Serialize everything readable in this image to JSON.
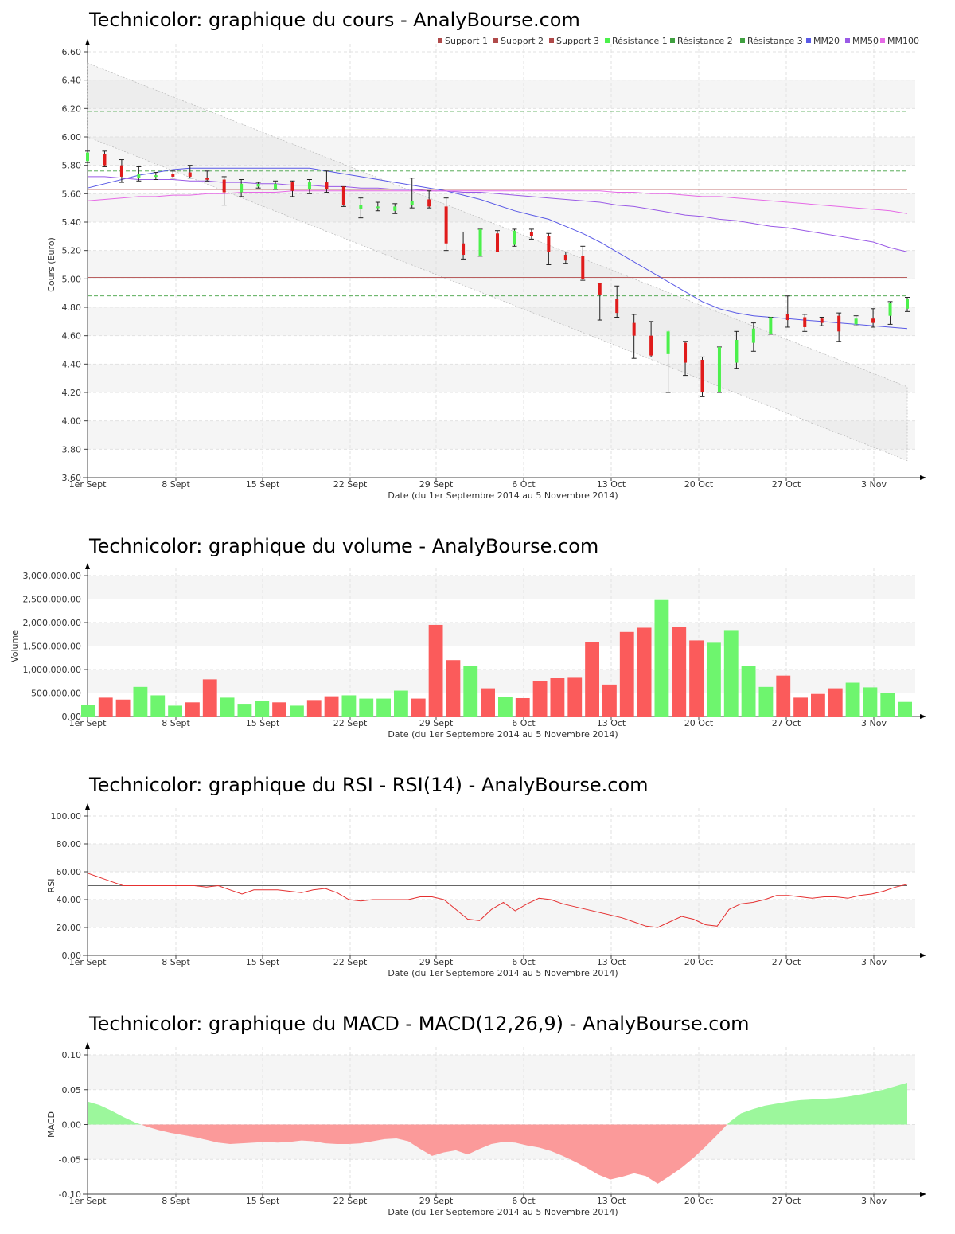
{
  "colors": {
    "up": "#4cf04c",
    "down": "#e01b1b",
    "vol_up": "#6ef56e",
    "vol_down": "#fb5b5b",
    "mm20": "#5a5ae6",
    "mm50": "#9a5ae6",
    "mm100": "#e66ae6",
    "support": "#b04a4a",
    "resistance": "#40a040",
    "rsi": "#e53030",
    "macd_pos": "#9cf79c",
    "macd_neg": "#fb9a9a",
    "band": "#efefef"
  },
  "x_ticks": [
    "1er Sept",
    "8 Sept",
    "15 Sept",
    "22 Sept",
    "29 Sept",
    "6 Oct",
    "13 Oct",
    "20 Oct",
    "27 Oct",
    "3 Nov"
  ],
  "x_label": "Date (du 1er Septembre 2014 au 5 Novembre 2014)",
  "chart_data": [
    {
      "type": "candlestick",
      "title": "Technicolor: graphique du cours - AnalyBourse.com",
      "ylabel": "Cours (Euro)",
      "ylim": [
        3.6,
        6.6
      ],
      "yticks": [
        "3.60",
        "3.80",
        "4.00",
        "4.20",
        "4.40",
        "4.60",
        "4.80",
        "5.00",
        "5.20",
        "5.40",
        "5.60",
        "5.80",
        "6.00",
        "6.20",
        "6.40",
        "6.60"
      ],
      "legend": [
        "Support 1",
        "Support 2",
        "Support 3",
        "Résistance 1",
        "Résistance 2",
        "Résistance 3",
        "MM20",
        "MM50",
        "MM100"
      ],
      "levels": {
        "support": [
          5.52,
          5.01,
          5.63
        ],
        "resistance": [
          4.88,
          5.76,
          6.18
        ]
      },
      "trend_channel": {
        "upper": [
          6.52,
          4.24
        ],
        "lower": [
          6.0,
          3.72
        ]
      },
      "candles": [
        {
          "o": 5.83,
          "h": 5.9,
          "l": 5.82,
          "c": 5.89
        },
        {
          "o": 5.88,
          "h": 5.9,
          "l": 5.79,
          "c": 5.8
        },
        {
          "o": 5.8,
          "h": 5.84,
          "l": 5.68,
          "c": 5.72
        },
        {
          "o": 5.71,
          "h": 5.79,
          "l": 5.69,
          "c": 5.74
        },
        {
          "o": 5.72,
          "h": 5.75,
          "l": 5.7,
          "c": 5.73
        },
        {
          "o": 5.74,
          "h": 5.76,
          "l": 5.71,
          "c": 5.72
        },
        {
          "o": 5.75,
          "h": 5.8,
          "l": 5.71,
          "c": 5.72
        },
        {
          "o": 5.71,
          "h": 5.76,
          "l": 5.69,
          "c": 5.7
        },
        {
          "o": 5.7,
          "h": 5.72,
          "l": 5.52,
          "c": 5.61
        },
        {
          "o": 5.61,
          "h": 5.7,
          "l": 5.58,
          "c": 5.67
        },
        {
          "o": 5.65,
          "h": 5.68,
          "l": 5.64,
          "c": 5.67
        },
        {
          "o": 5.63,
          "h": 5.69,
          "l": 5.63,
          "c": 5.67
        },
        {
          "o": 5.68,
          "h": 5.69,
          "l": 5.58,
          "c": 5.62
        },
        {
          "o": 5.63,
          "h": 5.7,
          "l": 5.6,
          "c": 5.68
        },
        {
          "o": 5.68,
          "h": 5.76,
          "l": 5.61,
          "c": 5.63
        },
        {
          "o": 5.65,
          "h": 5.65,
          "l": 5.51,
          "c": 5.52
        },
        {
          "o": 5.49,
          "h": 5.57,
          "l": 5.43,
          "c": 5.52
        },
        {
          "o": 5.5,
          "h": 5.54,
          "l": 5.48,
          "c": 5.51
        },
        {
          "o": 5.48,
          "h": 5.53,
          "l": 5.46,
          "c": 5.51
        },
        {
          "o": 5.52,
          "h": 5.71,
          "l": 5.5,
          "c": 5.55
        },
        {
          "o": 5.56,
          "h": 5.62,
          "l": 5.5,
          "c": 5.51
        },
        {
          "o": 5.51,
          "h": 5.57,
          "l": 5.2,
          "c": 5.25
        },
        {
          "o": 5.25,
          "h": 5.33,
          "l": 5.14,
          "c": 5.17
        },
        {
          "o": 5.16,
          "h": 5.35,
          "l": 5.16,
          "c": 5.35
        },
        {
          "o": 5.32,
          "h": 5.34,
          "l": 5.19,
          "c": 5.19
        },
        {
          "o": 5.24,
          "h": 5.35,
          "l": 5.23,
          "c": 5.34
        },
        {
          "o": 5.33,
          "h": 5.35,
          "l": 5.28,
          "c": 5.3
        },
        {
          "o": 5.3,
          "h": 5.32,
          "l": 5.1,
          "c": 5.19
        },
        {
          "o": 5.17,
          "h": 5.19,
          "l": 5.11,
          "c": 5.13
        },
        {
          "o": 5.16,
          "h": 5.23,
          "l": 4.99,
          "c": 5.0
        },
        {
          "o": 4.97,
          "h": 4.97,
          "l": 4.71,
          "c": 4.89
        },
        {
          "o": 4.86,
          "h": 4.95,
          "l": 4.73,
          "c": 4.76
        },
        {
          "o": 4.69,
          "h": 4.75,
          "l": 4.44,
          "c": 4.6
        },
        {
          "o": 4.6,
          "h": 4.7,
          "l": 4.45,
          "c": 4.46
        },
        {
          "o": 4.47,
          "h": 4.64,
          "l": 4.2,
          "c": 4.63
        },
        {
          "o": 4.55,
          "h": 4.56,
          "l": 4.32,
          "c": 4.41
        },
        {
          "o": 4.43,
          "h": 4.45,
          "l": 4.17,
          "c": 4.2
        },
        {
          "o": 4.2,
          "h": 4.52,
          "l": 4.2,
          "c": 4.52
        },
        {
          "o": 4.41,
          "h": 4.63,
          "l": 4.37,
          "c": 4.57
        },
        {
          "o": 4.55,
          "h": 4.69,
          "l": 4.49,
          "c": 4.65
        },
        {
          "o": 4.61,
          "h": 4.73,
          "l": 4.61,
          "c": 4.73
        },
        {
          "o": 4.75,
          "h": 4.88,
          "l": 4.66,
          "c": 4.71
        },
        {
          "o": 4.73,
          "h": 4.75,
          "l": 4.63,
          "c": 4.66
        },
        {
          "o": 4.72,
          "h": 4.73,
          "l": 4.67,
          "c": 4.69
        },
        {
          "o": 4.74,
          "h": 4.76,
          "l": 4.56,
          "c": 4.63
        },
        {
          "o": 4.68,
          "h": 4.74,
          "l": 4.67,
          "c": 4.72
        },
        {
          "o": 4.72,
          "h": 4.79,
          "l": 4.66,
          "c": 4.69
        },
        {
          "o": 4.74,
          "h": 4.84,
          "l": 4.68,
          "c": 4.83
        },
        {
          "o": 4.79,
          "h": 4.87,
          "l": 4.77,
          "c": 4.86
        }
      ],
      "mm20": [
        5.64,
        5.67,
        5.7,
        5.73,
        5.75,
        5.77,
        5.78,
        5.78,
        5.78,
        5.78,
        5.78,
        5.78,
        5.78,
        5.78,
        5.76,
        5.74,
        5.72,
        5.7,
        5.68,
        5.66,
        5.64,
        5.62,
        5.59,
        5.56,
        5.52,
        5.48,
        5.45,
        5.42,
        5.37,
        5.32,
        5.26,
        5.19,
        5.12,
        5.05,
        4.98,
        4.91,
        4.84,
        4.79,
        4.76,
        4.74,
        4.73,
        4.72,
        4.71,
        4.7,
        4.69,
        4.68,
        4.67,
        4.66,
        4.65
      ],
      "mm50": [
        5.72,
        5.72,
        5.71,
        5.7,
        5.7,
        5.7,
        5.69,
        5.69,
        5.68,
        5.68,
        5.67,
        5.67,
        5.66,
        5.66,
        5.65,
        5.65,
        5.64,
        5.64,
        5.63,
        5.63,
        5.62,
        5.62,
        5.61,
        5.61,
        5.6,
        5.59,
        5.58,
        5.57,
        5.56,
        5.55,
        5.54,
        5.52,
        5.51,
        5.49,
        5.47,
        5.45,
        5.44,
        5.42,
        5.41,
        5.39,
        5.37,
        5.36,
        5.34,
        5.32,
        5.3,
        5.28,
        5.26,
        5.22,
        5.19
      ],
      "mm100": [
        5.55,
        5.56,
        5.57,
        5.58,
        5.58,
        5.59,
        5.59,
        5.6,
        5.6,
        5.61,
        5.61,
        5.61,
        5.62,
        5.62,
        5.62,
        5.62,
        5.62,
        5.62,
        5.62,
        5.62,
        5.62,
        5.62,
        5.62,
        5.62,
        5.62,
        5.62,
        5.62,
        5.62,
        5.62,
        5.62,
        5.62,
        5.61,
        5.61,
        5.6,
        5.6,
        5.59,
        5.58,
        5.58,
        5.57,
        5.56,
        5.55,
        5.54,
        5.53,
        5.52,
        5.51,
        5.5,
        5.49,
        5.48,
        5.46
      ]
    },
    {
      "type": "bar",
      "title": "Technicolor: graphique du volume - AnalyBourse.com",
      "ylabel": "Volume",
      "ylim": [
        0,
        3000000
      ],
      "yticks": [
        "0.00",
        "500,000.00",
        "1,000,000.00",
        "1,500,000.00",
        "2,000,000.00",
        "2,500,000.00",
        "3,000,000.00"
      ],
      "values": [
        250000,
        400000,
        360000,
        630000,
        450000,
        230000,
        300000,
        790000,
        400000,
        270000,
        330000,
        300000,
        230000,
        350000,
        430000,
        450000,
        380000,
        380000,
        550000,
        380000,
        1950000,
        1200000,
        1080000,
        600000,
        410000,
        390000,
        750000,
        820000,
        840000,
        1590000,
        680000,
        1800000,
        1890000,
        2480000,
        1900000,
        1620000,
        1570000,
        1840000,
        1080000,
        630000,
        870000,
        400000,
        480000,
        600000,
        720000,
        620000,
        500000,
        310000
      ],
      "up": [
        1,
        0,
        0,
        1,
        1,
        1,
        0,
        0,
        1,
        1,
        1,
        0,
        1,
        0,
        0,
        1,
        1,
        1,
        1,
        0,
        0,
        0,
        1,
        0,
        1,
        0,
        0,
        0,
        0,
        0,
        0,
        0,
        0,
        1,
        0,
        0,
        1,
        1,
        1,
        1,
        0,
        0,
        0,
        0,
        1,
        1,
        1,
        1
      ]
    },
    {
      "type": "line",
      "title": "Technicolor: graphique du RSI - RSI(14) - AnalyBourse.com",
      "ylabel": "RSI",
      "ylim": [
        0,
        100
      ],
      "yticks": [
        "0.00",
        "20.00",
        "40.00",
        "60.00",
        "80.00",
        "100.00"
      ],
      "reference": 50,
      "values": [
        59,
        56,
        53,
        50,
        50,
        50,
        50,
        50,
        50,
        50,
        49,
        50,
        47,
        44,
        47,
        47,
        47,
        46,
        45,
        47,
        48,
        45,
        40,
        39,
        40,
        40,
        40,
        40,
        42,
        42,
        40,
        33,
        26,
        25,
        33,
        38,
        32,
        37,
        41,
        40,
        37,
        35,
        33,
        31,
        29,
        27,
        24,
        21,
        20,
        24,
        28,
        26,
        22,
        21,
        33,
        37,
        38,
        40,
        43,
        43,
        42,
        41,
        42,
        42,
        41,
        43,
        44,
        46,
        49,
        51
      ]
    },
    {
      "type": "area",
      "title": "Technicolor: graphique du MACD - MACD(12,26,9) - AnalyBourse.com",
      "ylabel": "MACD",
      "ylim": [
        -0.1,
        0.1
      ],
      "yticks": [
        "-0.10",
        "-0.05",
        "0.00",
        "0.05",
        "0.10"
      ],
      "values": [
        0.033,
        0.028,
        0.02,
        0.011,
        0.003,
        -0.003,
        -0.008,
        -0.012,
        -0.015,
        -0.018,
        -0.022,
        -0.026,
        -0.028,
        -0.027,
        -0.026,
        -0.025,
        -0.026,
        -0.025,
        -0.023,
        -0.024,
        -0.027,
        -0.028,
        -0.028,
        -0.027,
        -0.024,
        -0.021,
        -0.02,
        -0.024,
        -0.035,
        -0.045,
        -0.04,
        -0.037,
        -0.043,
        -0.035,
        -0.028,
        -0.025,
        -0.026,
        -0.03,
        -0.033,
        -0.038,
        -0.045,
        -0.053,
        -0.062,
        -0.072,
        -0.079,
        -0.075,
        -0.07,
        -0.074,
        -0.085,
        -0.074,
        -0.062,
        -0.048,
        -0.032,
        -0.015,
        0.003,
        0.016,
        0.022,
        0.027,
        0.03,
        0.033,
        0.035,
        0.036,
        0.037,
        0.038,
        0.04,
        0.043,
        0.046,
        0.05,
        0.055,
        0.06
      ]
    }
  ]
}
